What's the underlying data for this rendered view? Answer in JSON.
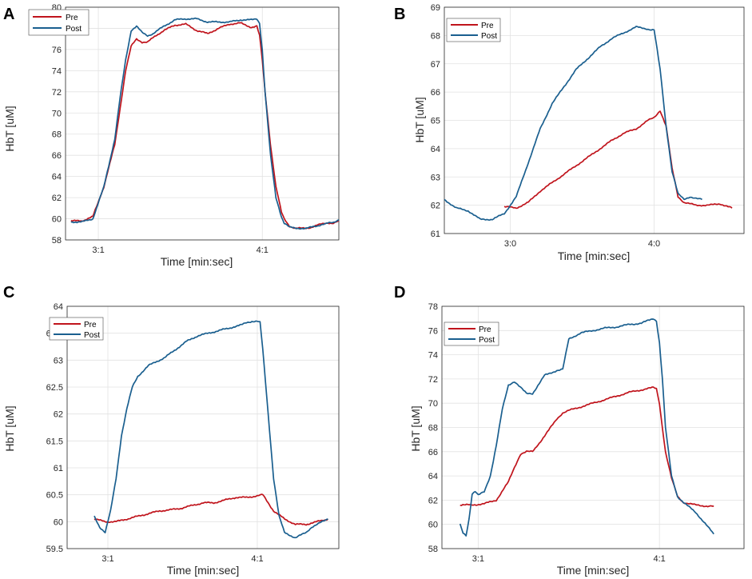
{
  "colors": {
    "pre": "#c0141c",
    "post": "#1a5f8f",
    "grid": "#e2e2e2",
    "axis": "#262626"
  },
  "chart_data": [
    {
      "panel": "A",
      "type": "line",
      "xlabel": "Time [min:sec]",
      "ylabel": "HbT [uM]",
      "xlim": [
        0,
        100
      ],
      "ylim": [
        58,
        80
      ],
      "x_ticks": [
        {
          "x": 12,
          "label": "3:1"
        },
        {
          "x": 72,
          "label": "4:1"
        }
      ],
      "y_ticks": [
        58,
        60,
        62,
        64,
        66,
        68,
        70,
        72,
        74,
        76,
        78,
        80
      ],
      "legend": {
        "position": "top-left",
        "entries": [
          "Pre",
          "Post"
        ]
      },
      "series": [
        {
          "name": "Pre",
          "color": "#c0141c",
          "x": [
            2,
            6,
            10,
            14,
            18,
            20,
            22,
            24,
            26,
            28,
            30,
            33,
            36,
            40,
            44,
            48,
            52,
            56,
            60,
            64,
            68,
            70,
            71,
            72,
            73,
            75,
            77,
            79,
            80,
            82,
            84,
            86,
            88,
            90,
            92,
            94,
            96,
            98,
            100
          ],
          "y": [
            59.8,
            59.8,
            60.2,
            63,
            67,
            70.5,
            74,
            76.3,
            77,
            76.7,
            76.7,
            77.3,
            77.8,
            78.3,
            78.4,
            77.8,
            77.5,
            78,
            78.4,
            78.5,
            78.1,
            78.2,
            77.3,
            75,
            72,
            67,
            63,
            60.6,
            60,
            59.3,
            59.1,
            59.1,
            59.1,
            59.2,
            59.4,
            59.5,
            59.6,
            59.6,
            59.8
          ]
        },
        {
          "name": "Post",
          "color": "#1a5f8f",
          "x": [
            2,
            6,
            10,
            14,
            18,
            20,
            22,
            24,
            26,
            28,
            30,
            32,
            36,
            40,
            44,
            48,
            52,
            56,
            60,
            64,
            68,
            70,
            71,
            72,
            73,
            75,
            77,
            79,
            80,
            82,
            84,
            86,
            88,
            90,
            92,
            94,
            96,
            98,
            100
          ],
          "y": [
            59.7,
            59.7,
            60,
            63,
            67.5,
            71.5,
            75,
            77.8,
            78.2,
            77.6,
            77.3,
            77.5,
            78.2,
            78.8,
            78.9,
            78.9,
            78.6,
            78.6,
            78.6,
            78.8,
            78.8,
            78.9,
            78.5,
            76,
            72,
            66,
            62,
            60.2,
            59.6,
            59.2,
            59.1,
            59.1,
            59.1,
            59.2,
            59.3,
            59.5,
            59.6,
            59.6,
            59.9
          ]
        }
      ]
    },
    {
      "panel": "B",
      "type": "line",
      "xlabel": "Time [min:sec]",
      "ylabel": "HbT [uM]",
      "xlim": [
        0,
        100
      ],
      "ylim": [
        61,
        69
      ],
      "x_ticks": [
        {
          "x": 22,
          "label": "3:0"
        },
        {
          "x": 70,
          "label": "4:0"
        }
      ],
      "y_ticks": [
        61,
        62,
        63,
        64,
        65,
        66,
        67,
        68,
        69
      ],
      "legend": {
        "position": "top-left",
        "entries": [
          "Pre",
          "Post"
        ]
      },
      "series": [
        {
          "name": "Pre",
          "color": "#c0141c",
          "x": [
            20,
            24,
            28,
            32,
            36,
            40,
            44,
            48,
            52,
            56,
            60,
            64,
            68,
            70,
            72,
            74,
            76,
            78,
            80,
            84,
            88,
            92,
            96
          ],
          "y": [
            61.95,
            61.9,
            62.1,
            62.5,
            62.8,
            63.1,
            63.4,
            63.7,
            64,
            64.3,
            64.55,
            64.7,
            65,
            65.1,
            65.35,
            64.8,
            63.3,
            62.3,
            62.1,
            62,
            62,
            62.05,
            61.9
          ]
        },
        {
          "name": "Post",
          "color": "#1a5f8f",
          "x": [
            0,
            4,
            8,
            12,
            16,
            20,
            24,
            28,
            32,
            36,
            40,
            44,
            48,
            52,
            56,
            60,
            64,
            67,
            69,
            70,
            72,
            74,
            76,
            78,
            80,
            82,
            84,
            86
          ],
          "y": [
            62.2,
            61.9,
            61.8,
            61.5,
            61.5,
            61.7,
            62.3,
            63.5,
            64.7,
            65.6,
            66.2,
            66.8,
            67.2,
            67.6,
            67.9,
            68.1,
            68.3,
            68.25,
            68.2,
            68.2,
            66.8,
            64.8,
            63.2,
            62.4,
            62.2,
            62.3,
            62.25,
            62.2
          ]
        }
      ]
    },
    {
      "panel": "C",
      "type": "line",
      "xlabel": "Time [min:sec]",
      "ylabel": "HbT [uM]",
      "xlim": [
        0,
        100
      ],
      "ylim": [
        59.5,
        64
      ],
      "x_ticks": [
        {
          "x": 15,
          "label": "3:1"
        },
        {
          "x": 70,
          "label": "4:1"
        }
      ],
      "y_ticks": [
        59.5,
        60,
        60.5,
        61,
        61.5,
        62,
        62.5,
        63,
        63.5,
        64
      ],
      "legend": {
        "position": "top-left",
        "entries": [
          "Pre",
          "Post"
        ]
      },
      "series": [
        {
          "name": "Pre",
          "color": "#c0141c",
          "x": [
            10,
            14,
            18,
            22,
            26,
            30,
            34,
            38,
            42,
            46,
            50,
            54,
            58,
            62,
            66,
            70,
            72,
            74,
            76,
            80,
            84,
            88,
            92,
            96
          ],
          "y": [
            60.05,
            60,
            60,
            60.05,
            60.1,
            60.15,
            60.2,
            60.22,
            60.25,
            60.3,
            60.35,
            60.35,
            60.4,
            60.45,
            60.45,
            60.48,
            60.5,
            60.35,
            60.2,
            60.05,
            59.95,
            59.95,
            60,
            60.05
          ]
        },
        {
          "name": "Post",
          "color": "#1a5f8f",
          "x": [
            10,
            12,
            14,
            16,
            18,
            20,
            22,
            24,
            26,
            28,
            30,
            32,
            36,
            40,
            44,
            48,
            52,
            56,
            60,
            64,
            66,
            68,
            70,
            71,
            72,
            74,
            76,
            78,
            80,
            82,
            84,
            86,
            88,
            90,
            92,
            94,
            96
          ],
          "y": [
            60.1,
            59.9,
            59.8,
            60.2,
            60.8,
            61.6,
            62.1,
            62.5,
            62.7,
            62.8,
            62.9,
            62.95,
            63.05,
            63.2,
            63.35,
            63.45,
            63.5,
            63.55,
            63.6,
            63.65,
            63.7,
            63.72,
            63.72,
            63.7,
            63.2,
            62,
            60.8,
            60.1,
            59.8,
            59.75,
            59.7,
            59.75,
            59.8,
            59.9,
            59.95,
            60,
            60.05
          ]
        }
      ]
    },
    {
      "panel": "D",
      "type": "line",
      "xlabel": "Time [min:sec]",
      "ylabel": "HbT [uM]",
      "xlim": [
        0,
        100
      ],
      "ylim": [
        58,
        78
      ],
      "x_ticks": [
        {
          "x": 12,
          "label": "3:1"
        },
        {
          "x": 72,
          "label": "4:1"
        }
      ],
      "y_ticks": [
        58,
        60,
        62,
        64,
        66,
        68,
        70,
        72,
        74,
        76,
        78
      ],
      "legend": {
        "position": "top-left",
        "entries": [
          "Pre",
          "Post"
        ]
      },
      "series": [
        {
          "name": "Pre",
          "color": "#c0141c",
          "x": [
            6,
            10,
            14,
            18,
            22,
            24,
            26,
            28,
            30,
            34,
            38,
            40,
            42,
            46,
            50,
            54,
            58,
            62,
            66,
            70,
            71,
            72,
            73,
            74,
            76,
            78,
            80,
            84,
            88,
            90
          ],
          "y": [
            61.6,
            61.6,
            61.7,
            62,
            63.5,
            64.7,
            65.8,
            66,
            66,
            67.3,
            68.7,
            69.2,
            69.4,
            69.7,
            70,
            70.3,
            70.6,
            70.9,
            71.1,
            71.3,
            71.2,
            70,
            68,
            66,
            63.8,
            62.3,
            61.8,
            61.6,
            61.5,
            61.5
          ]
        },
        {
          "name": "Post",
          "color": "#1a5f8f",
          "x": [
            6,
            7,
            8,
            9,
            10,
            11,
            12,
            14,
            16,
            18,
            20,
            22,
            24,
            26,
            28,
            30,
            34,
            38,
            40,
            42,
            46,
            50,
            54,
            58,
            62,
            66,
            70,
            71,
            72,
            73,
            74,
            76,
            78,
            80,
            84,
            88,
            90
          ],
          "y": [
            60,
            59.3,
            59.1,
            60.5,
            62.5,
            62.7,
            62.4,
            62.7,
            64,
            66.5,
            69.5,
            71.5,
            71.8,
            71.3,
            70.8,
            70.8,
            72.3,
            72.7,
            72.8,
            75.3,
            75.8,
            76,
            76.2,
            76.3,
            76.5,
            76.6,
            77,
            76.8,
            75,
            72,
            68,
            64,
            62.3,
            61.8,
            61,
            59.8,
            59.2
          ]
        }
      ]
    }
  ]
}
